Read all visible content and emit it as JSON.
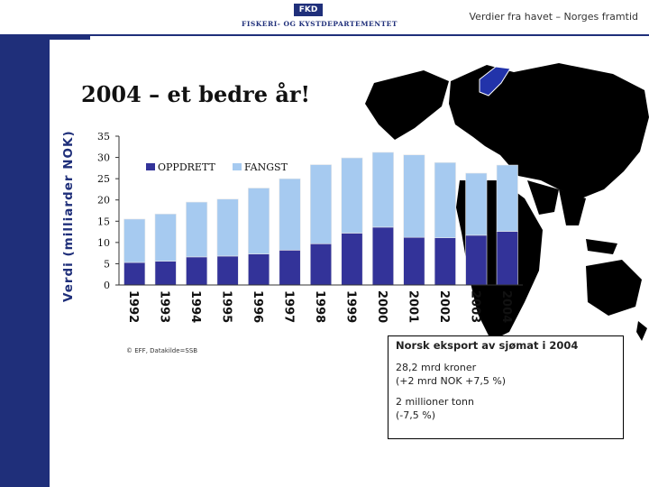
{
  "header": {
    "logo_abbr": "FKD",
    "logo_text": "FISKERI- OG KYSTDEPARTEMENTET",
    "caption": "Verdier fra havet – Norges framtid"
  },
  "slide": {
    "title": "2004 – et bedre år!",
    "source": "© EFF, Datakilde=SSB"
  },
  "info_box": {
    "title": "Norsk eksport av sjømat i 2004",
    "line1": "28,2 mrd kroner",
    "line2": "(+2 mrd NOK +7,5 %)",
    "line3": "2 millioner tonn",
    "line4": "(-7,5 %)"
  },
  "colors": {
    "navy": "#1f2f7a",
    "oppdrett": "#333399",
    "fangst": "#a6caf0"
  },
  "chart_data": {
    "type": "bar",
    "stacked": true,
    "title": "",
    "xlabel": "",
    "ylabel": "Verdi (milliarder NOK)",
    "ylim": [
      0,
      35
    ],
    "yticks": [
      "0",
      "5",
      "10",
      "15",
      "20",
      "25",
      "30",
      "35"
    ],
    "categories": [
      "1992",
      "1993",
      "1994",
      "1995",
      "1996",
      "1997",
      "1998",
      "1999",
      "2000",
      "2001",
      "2002",
      "2003",
      "2004"
    ],
    "series": [
      {
        "name": "OPPDRETT",
        "values": [
          5.3,
          5.6,
          6.6,
          6.8,
          7.3,
          8.2,
          9.7,
          12.2,
          13.6,
          11.2,
          11.1,
          11.7,
          12.6
        ]
      },
      {
        "name": "FANGST",
        "values": [
          10.2,
          11.1,
          12.9,
          13.4,
          15.5,
          16.8,
          18.6,
          17.7,
          17.6,
          19.4,
          17.7,
          14.6,
          15.6
        ]
      }
    ],
    "legend": [
      "OPPDRETT",
      "FANGST"
    ],
    "legend_position": "top-left"
  }
}
